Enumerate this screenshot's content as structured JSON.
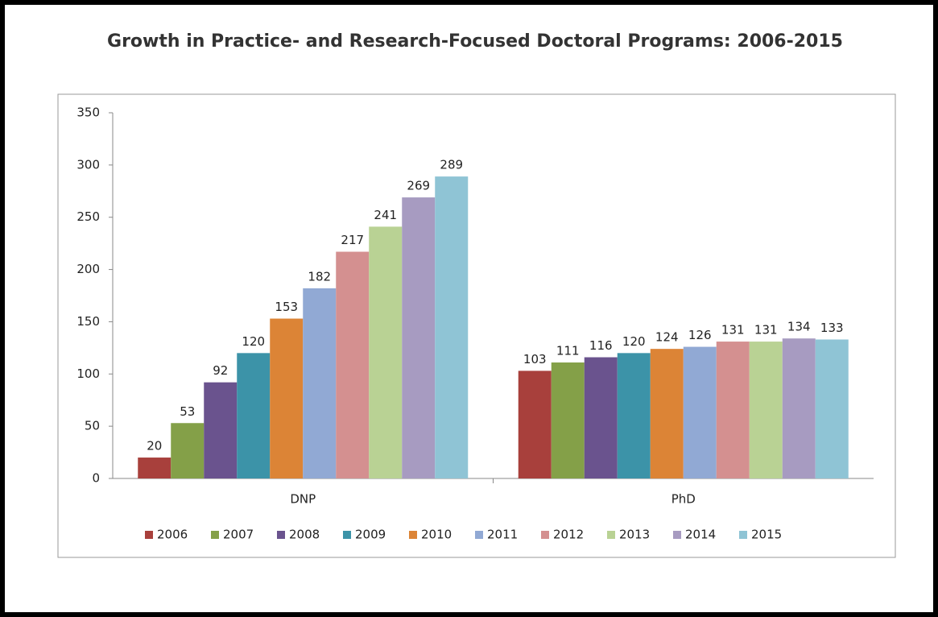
{
  "chart_data": {
    "type": "bar",
    "title": "Growth in Practice- and Research-Focused Doctoral Programs: 2006-2015",
    "categories": [
      "DNP",
      "PhD"
    ],
    "series": [
      {
        "name": "2006",
        "color": "#a8403c",
        "values": [
          20,
          103
        ]
      },
      {
        "name": "2007",
        "color": "#84a048",
        "values": [
          53,
          111
        ]
      },
      {
        "name": "2008",
        "color": "#6a538e",
        "values": [
          92,
          116
        ]
      },
      {
        "name": "2009",
        "color": "#3c93a8",
        "values": [
          120,
          120
        ]
      },
      {
        "name": "2010",
        "color": "#dc8436",
        "values": [
          153,
          124
        ]
      },
      {
        "name": "2011",
        "color": "#91a9d4",
        "values": [
          182,
          126
        ]
      },
      {
        "name": "2012",
        "color": "#d49090",
        "values": [
          217,
          131
        ]
      },
      {
        "name": "2013",
        "color": "#b9d294",
        "values": [
          241,
          131
        ]
      },
      {
        "name": "2014",
        "color": "#a79bc1",
        "values": [
          269,
          134
        ]
      },
      {
        "name": "2015",
        "color": "#8fc4d5",
        "values": [
          289,
          133
        ]
      }
    ],
    "ylim": [
      0,
      350
    ],
    "yticks": [
      0,
      50,
      100,
      150,
      200,
      250,
      300,
      350
    ],
    "grid": false,
    "legend": "bottom"
  }
}
